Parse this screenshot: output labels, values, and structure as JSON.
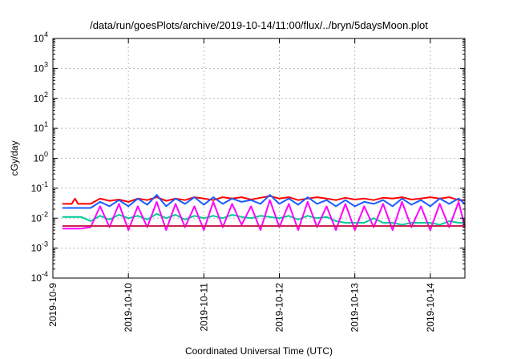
{
  "chart_data": {
    "type": "line",
    "title": "/data/run/goesPlots/archive/2019-10-14/11:00/flux/../bryn/5daysMoon.plot",
    "xlabel": "Coordinated Universal Time (UTC)",
    "ylabel": "cGy/day",
    "yscale": "log",
    "xlim": [
      "2019-10-09T00:00",
      "2019-10-14T11:00"
    ],
    "ylim": [
      0.0001,
      10000
    ],
    "x_ticks": [
      "2019-10-9",
      "2019-10-10",
      "2019-10-11",
      "2019-10-12",
      "2019-10-13",
      "2019-10-14"
    ],
    "y_ticks": [
      {
        "base": "10",
        "exp": "-4",
        "value": 0.0001
      },
      {
        "base": "10",
        "exp": "-3",
        "value": 0.001
      },
      {
        "base": "10",
        "exp": "-2",
        "value": 0.01
      },
      {
        "base": "10",
        "exp": "-1",
        "value": 0.1
      },
      {
        "base": "10",
        "exp": "0",
        "value": 1
      },
      {
        "base": "10",
        "exp": "1",
        "value": 10
      },
      {
        "base": "10",
        "exp": "2",
        "value": 100
      },
      {
        "base": "10",
        "exp": "3",
        "value": 1000
      },
      {
        "base": "10",
        "exp": "4",
        "value": 10000
      }
    ],
    "grid": true,
    "series": [
      {
        "color": "#ff0000",
        "x": [
          "2019-10-09T03:00",
          "2019-10-09T06:00",
          "2019-10-09T07:00",
          "2019-10-09T08:00",
          "2019-10-09T09:00",
          "2019-10-09T12:00",
          "2019-10-09T15:00",
          "2019-10-09T18:00",
          "2019-10-09T21:00",
          "2019-10-10T00:00",
          "2019-10-10T03:00",
          "2019-10-10T06:00",
          "2019-10-10T09:00",
          "2019-10-10T12:00",
          "2019-10-10T15:00",
          "2019-10-10T18:00",
          "2019-10-10T21:00",
          "2019-10-11T00:00",
          "2019-10-11T03:00",
          "2019-10-11T06:00",
          "2019-10-11T09:00",
          "2019-10-11T12:00",
          "2019-10-11T15:00",
          "2019-10-11T18:00",
          "2019-10-11T21:00",
          "2019-10-12T00:00",
          "2019-10-12T03:00",
          "2019-10-12T06:00",
          "2019-10-12T09:00",
          "2019-10-12T12:00",
          "2019-10-12T15:00",
          "2019-10-12T18:00",
          "2019-10-12T21:00",
          "2019-10-13T00:00",
          "2019-10-13T03:00",
          "2019-10-13T06:00",
          "2019-10-13T09:00",
          "2019-10-13T12:00",
          "2019-10-13T15:00",
          "2019-10-13T18:00",
          "2019-10-13T21:00",
          "2019-10-14T00:00",
          "2019-10-14T03:00",
          "2019-10-14T06:00",
          "2019-10-14T09:00",
          "2019-10-14T11:00"
        ],
        "y": [
          0.03,
          0.03,
          0.045,
          0.03,
          0.03,
          0.03,
          0.045,
          0.038,
          0.042,
          0.035,
          0.045,
          0.04,
          0.05,
          0.038,
          0.045,
          0.04,
          0.05,
          0.045,
          0.04,
          0.05,
          0.045,
          0.05,
          0.042,
          0.048,
          0.055,
          0.045,
          0.05,
          0.04,
          0.045,
          0.05,
          0.045,
          0.04,
          0.048,
          0.042,
          0.045,
          0.04,
          0.048,
          0.045,
          0.05,
          0.042,
          0.045,
          0.05,
          0.045,
          0.05,
          0.04,
          0.04
        ]
      },
      {
        "color": "#00cc99",
        "x": [
          "2019-10-09T03:00",
          "2019-10-09T06:00",
          "2019-10-09T07:00",
          "2019-10-09T08:00",
          "2019-10-09T09:00",
          "2019-10-09T12:00",
          "2019-10-09T15:00",
          "2019-10-09T18:00",
          "2019-10-09T21:00",
          "2019-10-10T00:00",
          "2019-10-10T03:00",
          "2019-10-10T06:00",
          "2019-10-10T09:00",
          "2019-10-10T12:00",
          "2019-10-10T15:00",
          "2019-10-10T18:00",
          "2019-10-10T21:00",
          "2019-10-11T00:00",
          "2019-10-11T03:00",
          "2019-10-11T06:00",
          "2019-10-11T09:00",
          "2019-10-11T12:00",
          "2019-10-11T15:00",
          "2019-10-11T18:00",
          "2019-10-11T21:00",
          "2019-10-12T00:00",
          "2019-10-12T03:00",
          "2019-10-12T06:00",
          "2019-10-12T09:00",
          "2019-10-12T12:00",
          "2019-10-12T15:00",
          "2019-10-12T18:00",
          "2019-10-12T21:00",
          "2019-10-13T00:00",
          "2019-10-13T03:00",
          "2019-10-13T06:00",
          "2019-10-13T09:00",
          "2019-10-13T12:00",
          "2019-10-13T15:00",
          "2019-10-13T18:00",
          "2019-10-13T21:00",
          "2019-10-14T00:00",
          "2019-10-14T03:00",
          "2019-10-14T06:00",
          "2019-10-14T09:00",
          "2019-10-14T11:00"
        ],
        "y": [
          0.011,
          0.011,
          0.011,
          0.011,
          0.011,
          0.008,
          0.012,
          0.009,
          0.013,
          0.01,
          0.012,
          0.009,
          0.014,
          0.01,
          0.013,
          0.009,
          0.012,
          0.01,
          0.012,
          0.01,
          0.013,
          0.011,
          0.01,
          0.012,
          0.011,
          0.01,
          0.012,
          0.009,
          0.012,
          0.01,
          0.011,
          0.008,
          0.007,
          0.007,
          0.007,
          0.01,
          0.007,
          0.007,
          0.006,
          0.007,
          0.007,
          0.007,
          0.006,
          0.008,
          0.007,
          0.007
        ]
      },
      {
        "color": "#ff00ff",
        "x": [
          "2019-10-09T03:00",
          "2019-10-09T06:00",
          "2019-10-09T07:00",
          "2019-10-09T08:00",
          "2019-10-09T09:00",
          "2019-10-09T12:00",
          "2019-10-09T15:00",
          "2019-10-09T18:00",
          "2019-10-09T21:00",
          "2019-10-10T00:00",
          "2019-10-10T03:00",
          "2019-10-10T06:00",
          "2019-10-10T09:00",
          "2019-10-10T12:00",
          "2019-10-10T15:00",
          "2019-10-10T18:00",
          "2019-10-10T21:00",
          "2019-10-11T00:00",
          "2019-10-11T03:00",
          "2019-10-11T06:00",
          "2019-10-11T09:00",
          "2019-10-11T12:00",
          "2019-10-11T15:00",
          "2019-10-11T18:00",
          "2019-10-11T21:00",
          "2019-10-12T00:00",
          "2019-10-12T03:00",
          "2019-10-12T06:00",
          "2019-10-12T09:00",
          "2019-10-12T12:00",
          "2019-10-12T15:00",
          "2019-10-12T18:00",
          "2019-10-12T21:00",
          "2019-10-13T00:00",
          "2019-10-13T03:00",
          "2019-10-13T06:00",
          "2019-10-13T09:00",
          "2019-10-13T12:00",
          "2019-10-13T15:00",
          "2019-10-13T18:00",
          "2019-10-13T21:00",
          "2019-10-14T00:00",
          "2019-10-14T03:00",
          "2019-10-14T06:00",
          "2019-10-14T09:00",
          "2019-10-14T11:00"
        ],
        "y": [
          0.0045,
          0.0045,
          0.0045,
          0.0045,
          0.0045,
          0.005,
          0.025,
          0.005,
          0.03,
          0.004,
          0.025,
          0.005,
          0.035,
          0.004,
          0.03,
          0.005,
          0.025,
          0.004,
          0.035,
          0.005,
          0.03,
          0.006,
          0.025,
          0.004,
          0.04,
          0.005,
          0.03,
          0.004,
          0.035,
          0.005,
          0.025,
          0.004,
          0.03,
          0.004,
          0.025,
          0.005,
          0.03,
          0.004,
          0.035,
          0.005,
          0.025,
          0.004,
          0.03,
          0.005,
          0.035,
          0.005
        ]
      },
      {
        "color": "#1a5cff",
        "x": [
          "2019-10-09T03:00",
          "2019-10-09T06:00",
          "2019-10-09T07:00",
          "2019-10-09T08:00",
          "2019-10-09T09:00",
          "2019-10-09T12:00",
          "2019-10-09T15:00",
          "2019-10-09T18:00",
          "2019-10-09T21:00",
          "2019-10-10T00:00",
          "2019-10-10T03:00",
          "2019-10-10T06:00",
          "2019-10-10T09:00",
          "2019-10-10T12:00",
          "2019-10-10T15:00",
          "2019-10-10T18:00",
          "2019-10-10T21:00",
          "2019-10-11T00:00",
          "2019-10-11T03:00",
          "2019-10-11T06:00",
          "2019-10-11T09:00",
          "2019-10-11T12:00",
          "2019-10-11T15:00",
          "2019-10-11T18:00",
          "2019-10-11T21:00",
          "2019-10-12T00:00",
          "2019-10-12T03:00",
          "2019-10-12T06:00",
          "2019-10-12T09:00",
          "2019-10-12T12:00",
          "2019-10-12T15:00",
          "2019-10-12T18:00",
          "2019-10-12T21:00",
          "2019-10-13T00:00",
          "2019-10-13T03:00",
          "2019-10-13T06:00",
          "2019-10-13T09:00",
          "2019-10-13T12:00",
          "2019-10-13T15:00",
          "2019-10-13T18:00",
          "2019-10-13T21:00",
          "2019-10-14T00:00",
          "2019-10-14T03:00",
          "2019-10-14T06:00",
          "2019-10-14T09:00",
          "2019-10-14T11:00"
        ],
        "y": [
          0.022,
          0.022,
          0.022,
          0.022,
          0.022,
          0.022,
          0.035,
          0.025,
          0.04,
          0.025,
          0.045,
          0.028,
          0.06,
          0.025,
          0.045,
          0.03,
          0.05,
          0.028,
          0.05,
          0.03,
          0.045,
          0.035,
          0.04,
          0.03,
          0.06,
          0.03,
          0.045,
          0.028,
          0.05,
          0.03,
          0.04,
          0.025,
          0.04,
          0.025,
          0.035,
          0.03,
          0.04,
          0.025,
          0.045,
          0.028,
          0.04,
          0.025,
          0.045,
          0.03,
          0.045,
          0.03
        ]
      },
      {
        "color": "#cc2255",
        "x": [
          "2019-10-09T03:00",
          "2019-10-09T06:00",
          "2019-10-09T07:00",
          "2019-10-09T08:00",
          "2019-10-09T09:00",
          "2019-10-09T12:00",
          "2019-10-09T15:00",
          "2019-10-09T18:00",
          "2019-10-09T21:00",
          "2019-10-10T00:00",
          "2019-10-10T03:00",
          "2019-10-10T06:00",
          "2019-10-10T09:00",
          "2019-10-10T12:00",
          "2019-10-10T15:00",
          "2019-10-10T18:00",
          "2019-10-10T21:00",
          "2019-10-11T00:00",
          "2019-10-11T03:00",
          "2019-10-11T06:00",
          "2019-10-11T09:00",
          "2019-10-11T12:00",
          "2019-10-11T15:00",
          "2019-10-11T18:00",
          "2019-10-11T21:00",
          "2019-10-12T00:00",
          "2019-10-12T03:00",
          "2019-10-12T06:00",
          "2019-10-12T09:00",
          "2019-10-12T12:00",
          "2019-10-12T15:00",
          "2019-10-12T18:00",
          "2019-10-12T21:00",
          "2019-10-13T00:00",
          "2019-10-13T03:00",
          "2019-10-13T06:00",
          "2019-10-13T09:00",
          "2019-10-13T12:00",
          "2019-10-13T15:00",
          "2019-10-13T18:00",
          "2019-10-13T21:00",
          "2019-10-14T00:00",
          "2019-10-14T03:00",
          "2019-10-14T06:00",
          "2019-10-14T09:00",
          "2019-10-14T11:00"
        ],
        "y": [
          0.0055,
          0.0055,
          0.0055,
          0.0055,
          0.0055,
          0.0055,
          0.0055,
          0.0055,
          0.0055,
          0.0055,
          0.0055,
          0.0055,
          0.0055,
          0.0055,
          0.0055,
          0.0055,
          0.0055,
          0.0055,
          0.0055,
          0.0055,
          0.0055,
          0.0055,
          0.0055,
          0.0055,
          0.0055,
          0.0055,
          0.0055,
          0.0055,
          0.0055,
          0.0055,
          0.0055,
          0.0055,
          0.0055,
          0.0055,
          0.0055,
          0.0055,
          0.0055,
          0.0055,
          0.0055,
          0.0055,
          0.0055,
          0.0055,
          0.0055,
          0.0055,
          0.0055,
          0.0055
        ]
      }
    ]
  }
}
